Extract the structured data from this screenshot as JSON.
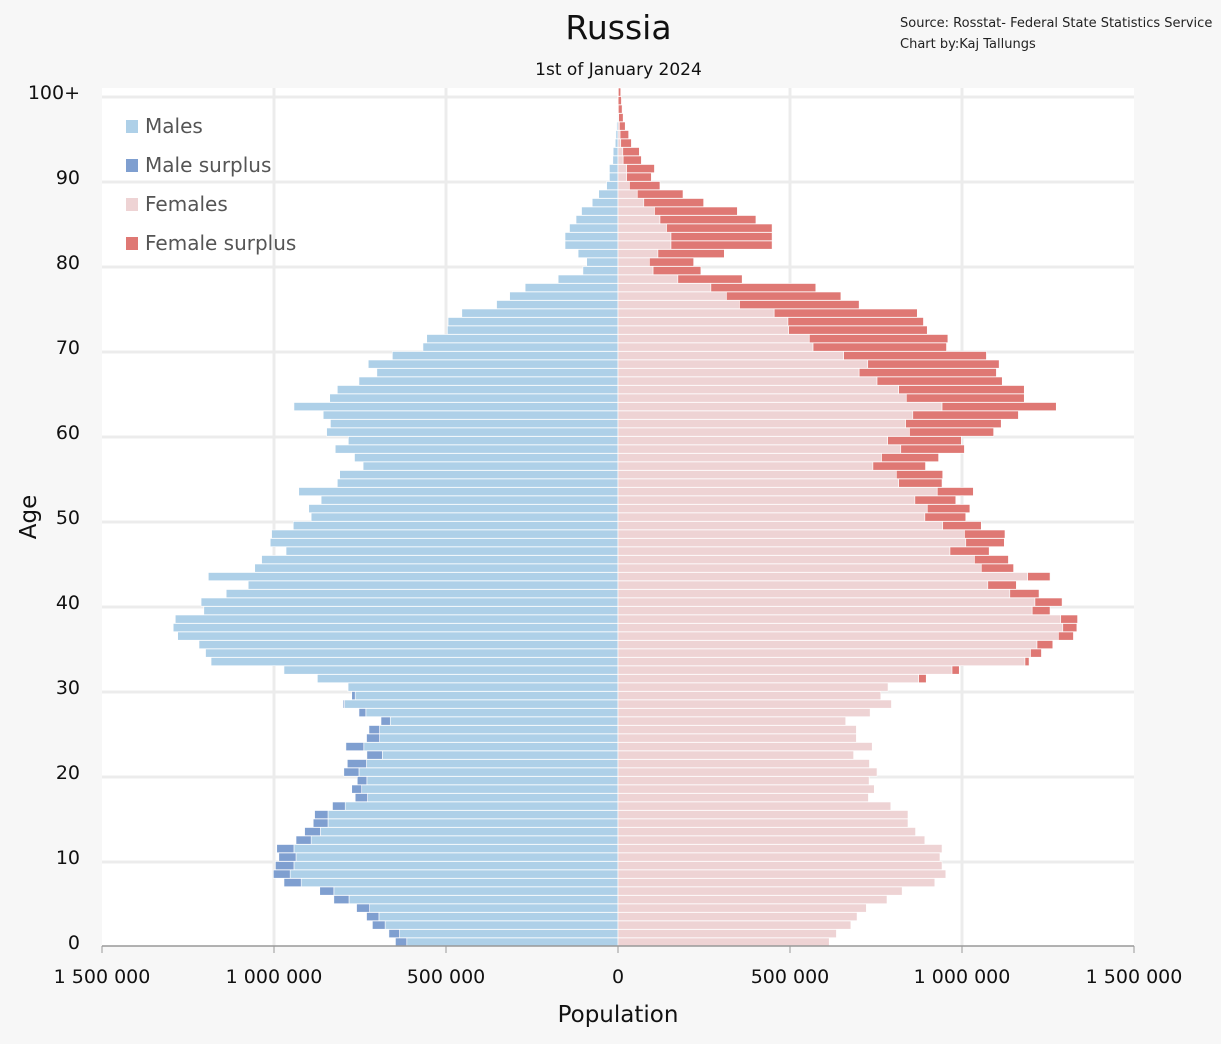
{
  "chart_data": {
    "type": "bar",
    "orientation": "horizontal-pyramid",
    "title": "Russia",
    "subtitle": "1st of January 2024",
    "source": "Source: Rosstat- Federal State Statistics Service",
    "credit": "Chart by:Kaj Tallungs",
    "xlabel": "Population",
    "ylabel": "Age",
    "xlim": [
      -1500000,
      1500000
    ],
    "x_ticks": [
      -1500000,
      -1000000,
      -500000,
      0,
      500000,
      1000000,
      1500000
    ],
    "x_tick_labels": [
      "1 500 000",
      "1 000 000",
      "500 000",
      "0",
      "500 000",
      "1 000 000",
      "1 500 000"
    ],
    "y_ticks": [
      0,
      10,
      20,
      30,
      40,
      50,
      60,
      70,
      80,
      90,
      100
    ],
    "y_tick_labels": [
      "0",
      "10",
      "20",
      "30",
      "40",
      "50",
      "60",
      "70",
      "80",
      "90",
      "100+"
    ],
    "grid": true,
    "legend_position": "top-left",
    "legend": [
      {
        "label": "Males",
        "color": "#aed0e8"
      },
      {
        "label": "Male surplus",
        "color": "#7f9fd0"
      },
      {
        "label": "Females",
        "color": "#eed3d4"
      },
      {
        "label": "Female surplus",
        "color": "#df7874"
      }
    ],
    "categories": [
      "0",
      "1",
      "2",
      "3",
      "4",
      "5",
      "6",
      "7",
      "8",
      "9",
      "10",
      "11",
      "12",
      "13",
      "14",
      "15",
      "16",
      "17",
      "18",
      "19",
      "20",
      "21",
      "22",
      "23",
      "24",
      "25",
      "26",
      "27",
      "28",
      "29",
      "30",
      "31",
      "32",
      "33",
      "34",
      "35",
      "36",
      "37",
      "38",
      "39",
      "40",
      "41",
      "42",
      "43",
      "44",
      "45",
      "46",
      "47",
      "48",
      "49",
      "50",
      "51",
      "52",
      "53",
      "54",
      "55",
      "56",
      "57",
      "58",
      "59",
      "60",
      "61",
      "62",
      "63",
      "64",
      "65",
      "66",
      "67",
      "68",
      "69",
      "70",
      "71",
      "72",
      "73",
      "74",
      "75",
      "76",
      "77",
      "78",
      "79",
      "80",
      "81",
      "82",
      "83",
      "84",
      "85",
      "86",
      "87",
      "88",
      "89",
      "90",
      "91",
      "92",
      "93",
      "94",
      "95",
      "96",
      "97",
      "98",
      "99",
      "100+"
    ],
    "series": [
      {
        "name": "Males",
        "values": [
          647000,
          666000,
          714000,
          731000,
          760000,
          826000,
          867000,
          971000,
          1002000,
          996000,
          986000,
          992000,
          936000,
          911000,
          886000,
          882000,
          830000,
          764000,
          774000,
          758000,
          797000,
          787000,
          730000,
          791000,
          731000,
          724000,
          689000,
          753000,
          799000,
          774000,
          786000,
          874000,
          971000,
          1183000,
          1199000,
          1218000,
          1280000,
          1293000,
          1287000,
          1204000,
          1212000,
          1139000,
          1075000,
          1191000,
          1056000,
          1036000,
          965000,
          1011000,
          1007000,
          944000,
          892000,
          899000,
          863000,
          928000,
          816000,
          809000,
          741000,
          766000,
          822000,
          784000,
          847000,
          836000,
          857000,
          942000,
          838000,
          816000,
          753000,
          701000,
          726000,
          656000,
          567000,
          556000,
          496000,
          494000,
          454000,
          353000,
          315000,
          270000,
          174000,
          102000,
          91000,
          116000,
          154000,
          154000,
          141000,
          122000,
          106000,
          75000,
          56000,
          33000,
          25000,
          25000,
          15000,
          14000,
          8000,
          6000,
          4000,
          2000,
          1000,
          500,
          1000
        ]
      },
      {
        "name": "Females",
        "values": [
          614000,
          635000,
          677000,
          695000,
          722000,
          782000,
          826000,
          921000,
          953000,
          942000,
          936000,
          942000,
          892000,
          865000,
          843000,
          843000,
          793000,
          728000,
          745000,
          730000,
          753000,
          731000,
          685000,
          739000,
          693000,
          693000,
          662000,
          733000,
          795000,
          764000,
          785000,
          896000,
          992000,
          1195000,
          1231000,
          1264000,
          1324000,
          1334000,
          1336000,
          1256000,
          1291000,
          1224000,
          1158000,
          1256000,
          1150000,
          1135000,
          1079000,
          1123000,
          1125000,
          1056000,
          1011000,
          1023000,
          982000,
          1033000,
          942000,
          944000,
          894000,
          932000,
          1007000,
          998000,
          1092000,
          1114000,
          1164000,
          1274000,
          1181000,
          1181000,
          1117000,
          1100000,
          1108000,
          1071000,
          955000,
          959000,
          899000,
          888000,
          870000,
          701000,
          648000,
          575000,
          361000,
          241000,
          220000,
          309000,
          448000,
          448000,
          448000,
          401000,
          347000,
          249000,
          189000,
          122000,
          97000,
          106000,
          68000,
          62000,
          39000,
          31000,
          21000,
          15000,
          12000,
          10000,
          8000
        ]
      }
    ]
  }
}
